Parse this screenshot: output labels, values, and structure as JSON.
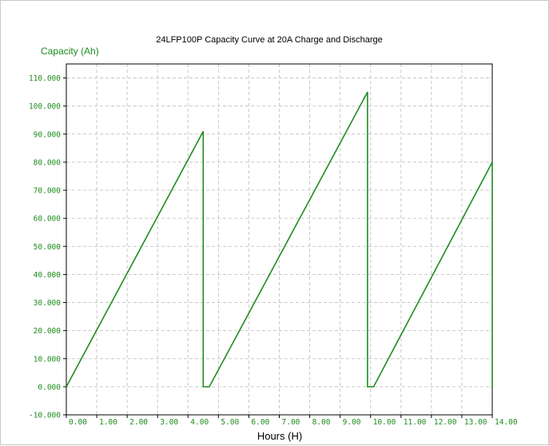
{
  "chart_data": {
    "type": "line",
    "title": "24LFP100P Capacity Curve at 20A Charge and Discharge",
    "ylabel": "Capacity (Ah)",
    "xlabel": "Hours (H)",
    "xlim": [
      0,
      14
    ],
    "ylim": [
      -10,
      115
    ],
    "x_ticks": [
      "0.00",
      "1.00",
      "2.00",
      "3.00",
      "4.00",
      "5.00",
      "6.00",
      "7.00",
      "8.00",
      "9.00",
      "10.00",
      "11.00",
      "12.00",
      "13.00",
      "14.00"
    ],
    "y_ticks": [
      "-10.000",
      "0.000",
      "10.000",
      "20.000",
      "30.000",
      "40.000",
      "50.000",
      "60.000",
      "70.000",
      "80.000",
      "90.000",
      "100.000",
      "110.000"
    ],
    "grid": true,
    "line_color": "#1e8c1e",
    "series": [
      {
        "x": [
          0.0,
          4.5,
          4.5,
          4.7,
          9.9,
          9.9,
          10.1,
          14.0,
          14.0
        ],
        "y": [
          0,
          91,
          0,
          0,
          105,
          0,
          0,
          80,
          0
        ]
      }
    ]
  }
}
